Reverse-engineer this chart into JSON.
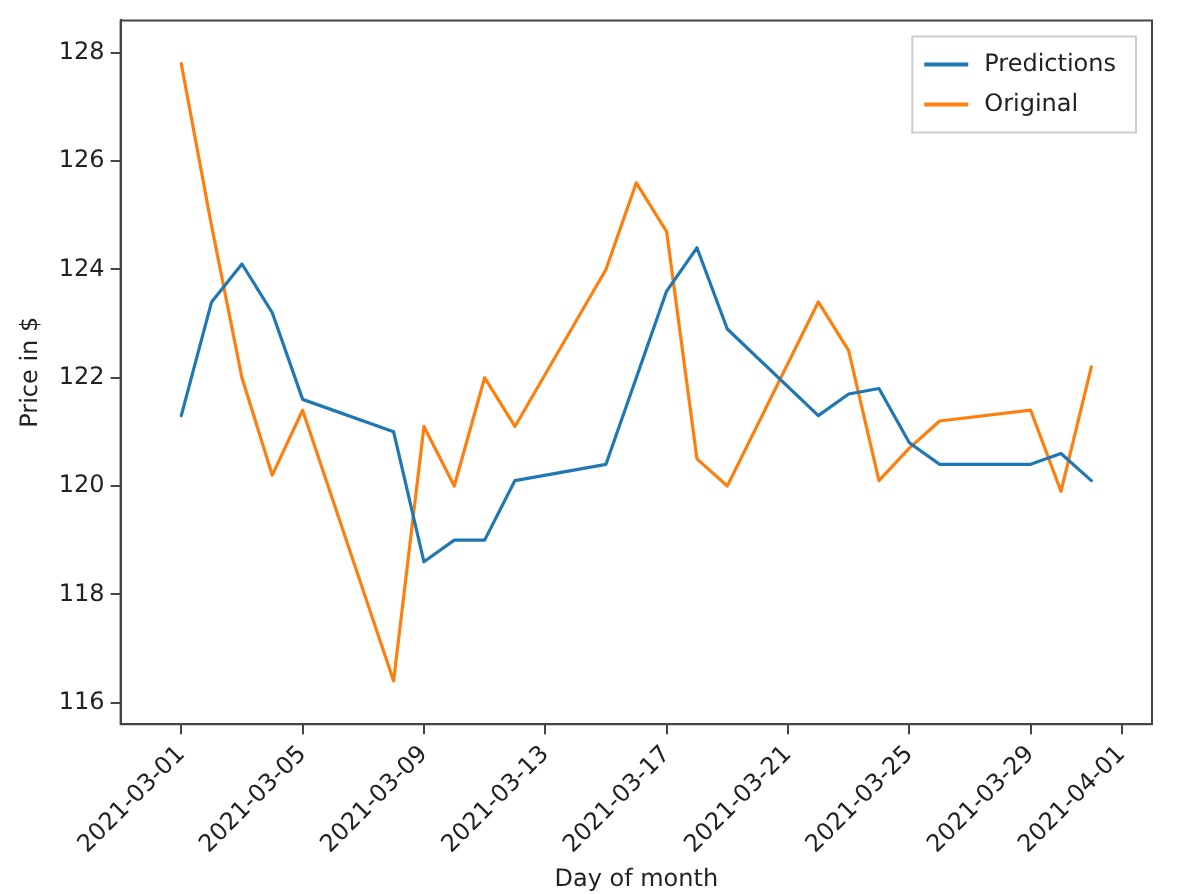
{
  "chart_data": {
    "type": "line",
    "xlabel": "Day of month",
    "ylabel": "Price in $",
    "x": [
      "2021-03-01",
      "2021-03-02",
      "2021-03-03",
      "2021-03-04",
      "2021-03-05",
      "2021-03-08",
      "2021-03-09",
      "2021-03-10",
      "2021-03-11",
      "2021-03-12",
      "2021-03-15",
      "2021-03-16",
      "2021-03-17",
      "2021-03-18",
      "2021-03-19",
      "2021-03-22",
      "2021-03-23",
      "2021-03-24",
      "2021-03-25",
      "2021-03-26",
      "2021-03-29",
      "2021-03-30",
      "2021-03-31"
    ],
    "series": [
      {
        "name": "Predictions",
        "color": "#1f77b4",
        "values": [
          121.3,
          123.4,
          124.1,
          123.2,
          121.6,
          121.0,
          118.6,
          119.0,
          119.0,
          120.1,
          120.4,
          122.0,
          123.6,
          124.4,
          122.9,
          121.3,
          121.7,
          121.8,
          120.8,
          120.4,
          120.4,
          120.6,
          120.1
        ]
      },
      {
        "name": "Original",
        "color": "#ff7f0e",
        "values": [
          127.8,
          124.8,
          122.0,
          120.2,
          121.4,
          116.4,
          121.1,
          120.0,
          122.0,
          121.1,
          124.0,
          125.6,
          124.7,
          120.5,
          120.0,
          123.4,
          122.5,
          120.1,
          120.7,
          121.2,
          121.4,
          119.9,
          122.2
        ]
      }
    ],
    "xlim": [
      "2021-02-27",
      "2021-04-02"
    ],
    "xticks": [
      "2021-03-01",
      "2021-03-05",
      "2021-03-09",
      "2021-03-13",
      "2021-03-17",
      "2021-03-21",
      "2021-03-25",
      "2021-03-29",
      "2021-04-01"
    ],
    "ylim": [
      115.6,
      128.6
    ],
    "yticks": [
      116,
      118,
      120,
      122,
      124,
      126,
      128
    ],
    "grid": false,
    "legend": "top right",
    "marker": "none",
    "line_style": "solid"
  }
}
